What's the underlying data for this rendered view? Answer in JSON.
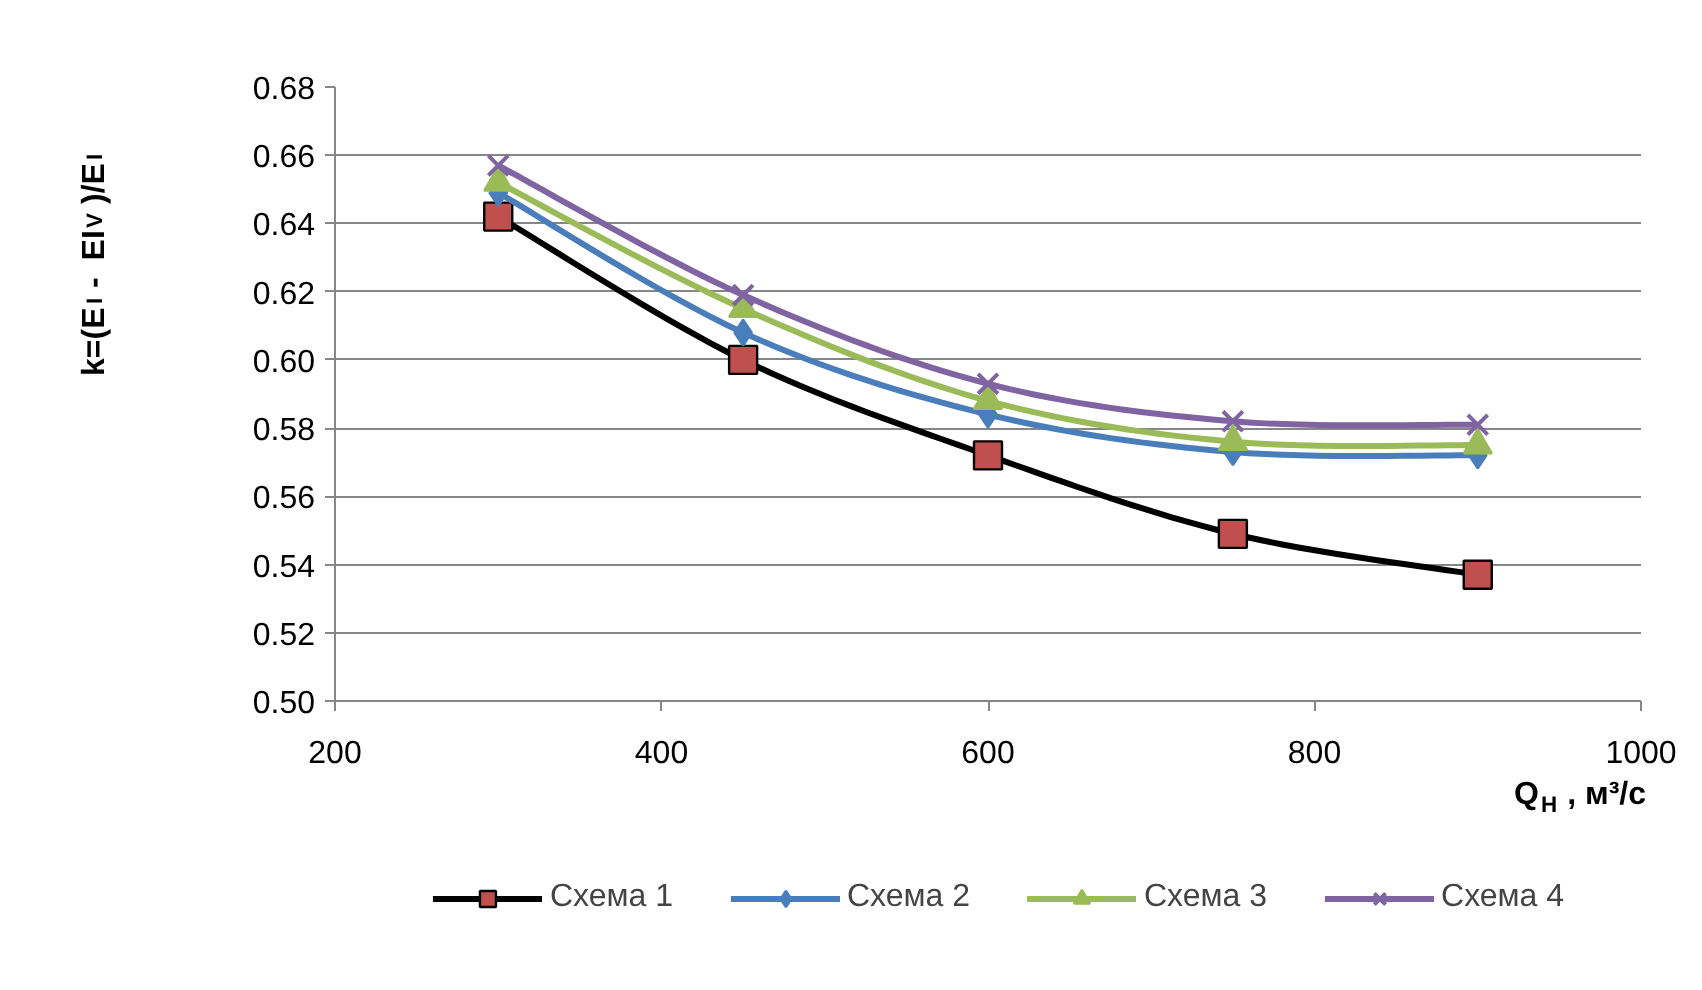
{
  "chart_data": {
    "type": "line",
    "xlabel": "Q$_{Н}$, м³/с",
    "ylabel": "k=(E$_{I}$ - EI$_{V}$)/E$_{I}$",
    "x": [
      300,
      450,
      600,
      750,
      900
    ],
    "series": [
      {
        "name": "Схема 1",
        "color": "#000000",
        "marker": "square",
        "values": [
          0.642,
          0.6,
          0.572,
          0.549,
          0.537
        ]
      },
      {
        "name": "Схема 2",
        "color": "#4a7ebb",
        "marker": "diamond",
        "values": [
          0.649,
          0.608,
          0.584,
          0.573,
          0.572
        ]
      },
      {
        "name": "Схема 3",
        "color": "#9bbb59",
        "marker": "triangle",
        "values": [
          0.652,
          0.615,
          0.588,
          0.576,
          0.575
        ]
      },
      {
        "name": "Схема 4",
        "color": "#8064a2",
        "marker": "cross",
        "values": [
          0.657,
          0.619,
          0.593,
          0.582,
          0.581
        ]
      }
    ],
    "xlim": [
      200,
      1000
    ],
    "xticks": [
      200,
      400,
      600,
      800,
      1000
    ],
    "ylim": [
      0.5,
      0.68
    ],
    "yticks": [
      {
        "value": 0.5,
        "label": "0.50"
      },
      {
        "value": 0.52,
        "label": "0.52"
      },
      {
        "value": 0.54,
        "label": "0.54"
      },
      {
        "value": 0.56,
        "label": "0.56"
      },
      {
        "value": 0.58,
        "label": "0.58"
      },
      {
        "value": 0.6,
        "label": "0.60"
      },
      {
        "value": 0.62,
        "label": "0.62"
      },
      {
        "value": 0.64,
        "label": "0.64"
      },
      {
        "value": 0.66,
        "label": "0.66"
      },
      {
        "value": 0.68,
        "label": "0.68"
      }
    ],
    "grid": "y",
    "legend": "bottom",
    "line_style": "solid"
  }
}
